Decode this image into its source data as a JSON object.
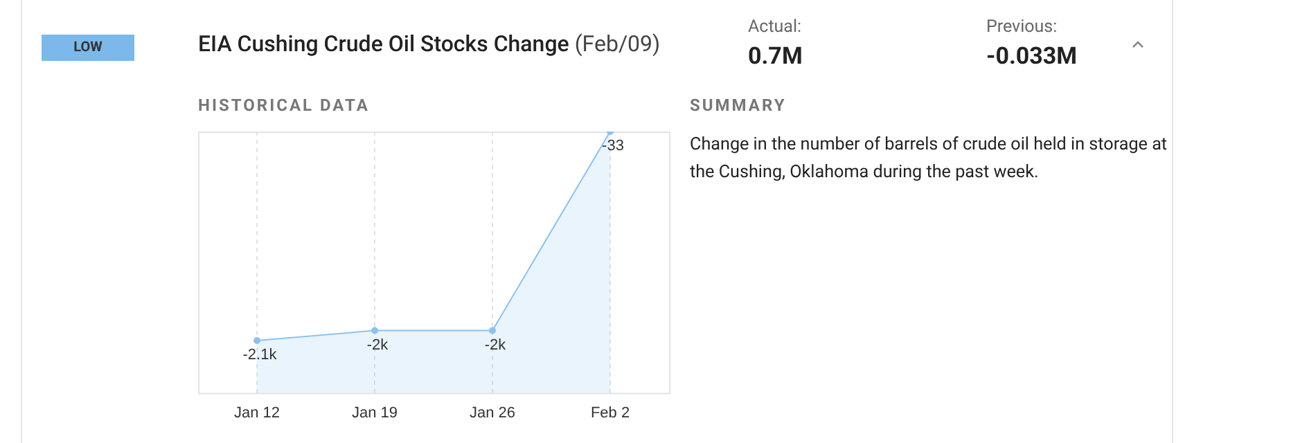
{
  "chart_data": {
    "type": "area",
    "title": "EIA Cushing Crude Oil Stocks Change",
    "subtitle": "(Feb/09)",
    "categories": [
      "Jan 12",
      "Jan 19",
      "Jan 26",
      "Feb 2"
    ],
    "series": [
      {
        "color": "#8cc2ee",
        "values": [
          -2100,
          -2000,
          -2000,
          -33
        ],
        "value_labels": [
          "-2.1k",
          "-2k",
          "-2k",
          "-33"
        ]
      }
    ],
    "grid": "x",
    "marker": "circle",
    "legend": false,
    "tick_labels": "x",
    "annotations": [
      "LOW",
      "Actual:",
      "0.7M",
      "Previous:",
      "-0.033M",
      "HISTORICAL DATA",
      "SUMMARY",
      "Change in the number of barrels of crude oil held in storage at the Cushing, Oklahoma during the past week."
    ]
  }
}
